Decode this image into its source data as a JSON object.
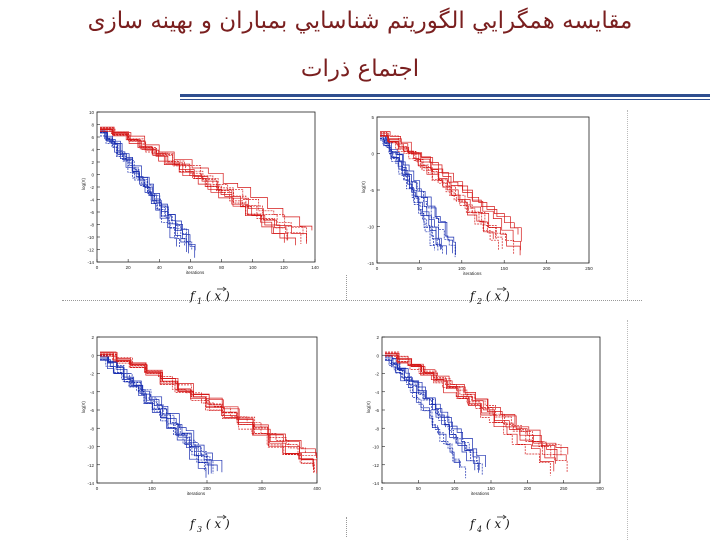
{
  "title_line1": "مقايسه همگرايي الگوريتم شناسايي بمباران و بهينه سازی",
  "title_line2": "اجتماع ذرات",
  "colors": {
    "title": "#7a1f1f",
    "rule": "#2f4f8f",
    "series_blue": "#1a2fb0",
    "series_red": "#d41818"
  },
  "panels": [
    {
      "id": "f1",
      "caption": "f 1 ( x )",
      "ylabel": "log(X)",
      "xlabel": "iterations",
      "xticks": [
        "0",
        "20",
        "40",
        "60",
        "80",
        "100",
        "120",
        "140"
      ],
      "yticks": [
        "10",
        "8",
        "6",
        "4",
        "2",
        "0",
        "-2",
        "-4",
        "-6",
        "-8",
        "-10",
        "-12",
        "-14"
      ]
    },
    {
      "id": "f2",
      "caption": "f 2 ( x )",
      "ylabel": "log(X)",
      "xlabel": "iterations",
      "xticks": [
        "0",
        "50",
        "100",
        "150",
        "200",
        "250"
      ],
      "yticks": [
        "5",
        "0",
        "-5",
        "-10",
        "-15"
      ]
    },
    {
      "id": "f3",
      "caption": "f 3 ( x )",
      "ylabel": "log(X)",
      "xlabel": "iterations",
      "xticks": [
        "0",
        "100",
        "200",
        "300",
        "400"
      ],
      "yticks": [
        "2",
        "0",
        "-2",
        "-4",
        "-6",
        "-8",
        "-10",
        "-12",
        "-14"
      ]
    },
    {
      "id": "f4",
      "caption": "f 4 ( x )",
      "ylabel": "log(X)",
      "xlabel": "iterations",
      "xticks": [
        "0",
        "50",
        "100",
        "150",
        "200",
        "250",
        "300"
      ],
      "yticks": [
        "2",
        "0",
        "-2",
        "-4",
        "-6",
        "-8",
        "-10",
        "-12",
        "-14"
      ]
    }
  ]
}
